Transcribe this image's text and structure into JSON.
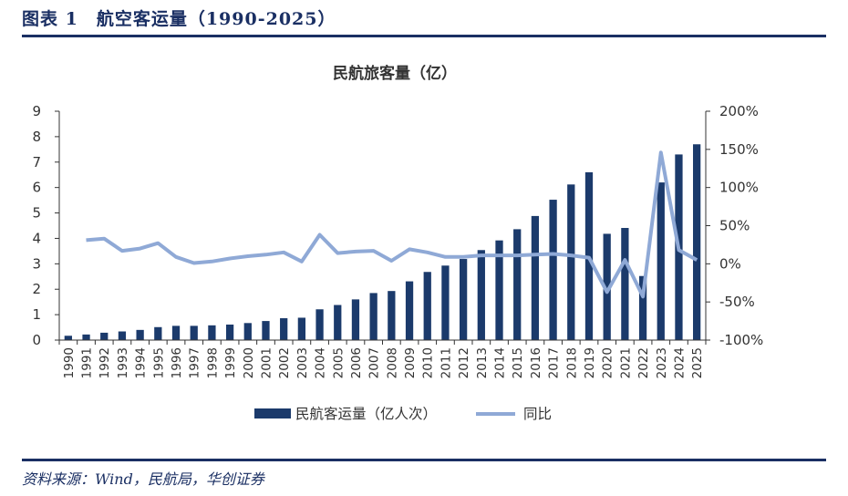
{
  "figure": {
    "title": "图表 1　航空客运量（1990-2025）",
    "source": "资料来源：Wind，民航局，华创证券"
  },
  "chart_data": {
    "type": "bar",
    "title": "民航旅客量（亿）",
    "categories": [
      "1990",
      "1991",
      "1992",
      "1993",
      "1994",
      "1995",
      "1996",
      "1997",
      "1998",
      "1999",
      "2000",
      "2001",
      "2002",
      "2003",
      "2004",
      "2005",
      "2006",
      "2007",
      "2008",
      "2009",
      "2010",
      "2011",
      "2012",
      "2013",
      "2014",
      "2015",
      "2016",
      "2017",
      "2018",
      "2019",
      "2020",
      "2021",
      "2022",
      "2023",
      "2024",
      "2025"
    ],
    "series": [
      {
        "name": "民航客运量（亿人次）",
        "type": "bar",
        "axis": "left",
        "color": "#1b3a6b",
        "values": [
          0.17,
          0.22,
          0.29,
          0.34,
          0.4,
          0.51,
          0.56,
          0.56,
          0.58,
          0.61,
          0.67,
          0.75,
          0.86,
          0.88,
          1.21,
          1.38,
          1.6,
          1.85,
          1.93,
          2.31,
          2.68,
          2.93,
          3.19,
          3.54,
          3.92,
          4.36,
          4.88,
          5.52,
          6.12,
          6.6,
          4.18,
          4.41,
          2.52,
          6.2,
          7.3,
          7.7
        ]
      },
      {
        "name": "同比",
        "type": "line",
        "axis": "right",
        "color": "#8fa9d6",
        "values": [
          null,
          31,
          33,
          17,
          20,
          27,
          9,
          1,
          3,
          7,
          10,
          12,
          15,
          3,
          38,
          14,
          16,
          17,
          4,
          19,
          15,
          9,
          9,
          11,
          11,
          11,
          12,
          13,
          11,
          8,
          -37,
          5,
          -43,
          146,
          18,
          5
        ]
      }
    ],
    "y_left": {
      "min": 0,
      "max": 9,
      "ticks": [
        "0",
        "1",
        "2",
        "3",
        "4",
        "5",
        "6",
        "7",
        "8",
        "9"
      ]
    },
    "y_right": {
      "min": -100,
      "max": 200,
      "ticks": [
        "-100%",
        "-50%",
        "0%",
        "50%",
        "100%",
        "150%",
        "200%"
      ]
    },
    "grid": false,
    "legend_position": "bottom"
  }
}
